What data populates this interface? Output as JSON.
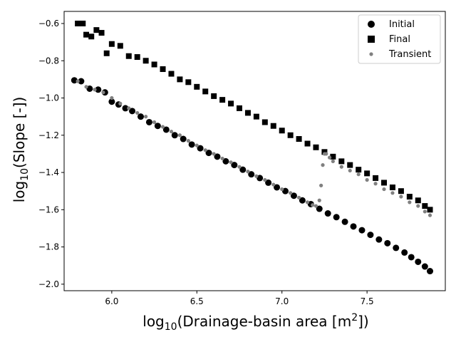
{
  "chart_data": {
    "type": "scatter",
    "xlabel_parts": [
      "log",
      "10",
      "(Drainage-basin area [m",
      "2",
      "])"
    ],
    "ylabel_parts": [
      "log",
      "10",
      "(Slope [-])"
    ],
    "xlim": [
      5.72,
      7.96
    ],
    "ylim": [
      -2.035,
      -0.535
    ],
    "x_ticks": [
      6.0,
      6.5,
      7.0,
      7.5
    ],
    "x_tick_labels": [
      "6.0",
      "6.5",
      "7.0",
      "7.5"
    ],
    "y_ticks": [
      -2.0,
      -1.8,
      -1.6,
      -1.4,
      -1.2,
      -1.0,
      -0.8,
      -0.6
    ],
    "y_tick_labels": [
      "−2.0",
      "−1.8",
      "−1.6",
      "−1.4",
      "−1.2",
      "−1.0",
      "−0.8",
      "−0.6"
    ],
    "legend_position": "top-right",
    "grid": false,
    "series": [
      {
        "name": "Initial",
        "marker": "circle",
        "color": "#000000",
        "x": [
          5.78,
          5.82,
          5.87,
          5.92,
          5.96,
          6.0,
          6.04,
          6.08,
          6.12,
          6.17,
          6.22,
          6.27,
          6.32,
          6.37,
          6.42,
          6.47,
          6.52,
          6.57,
          6.62,
          6.67,
          6.72,
          6.77,
          6.82,
          6.87,
          6.92,
          6.97,
          7.02,
          7.07,
          7.12,
          7.17,
          7.22,
          7.27,
          7.32,
          7.37,
          7.42,
          7.47,
          7.52,
          7.57,
          7.62,
          7.67,
          7.72,
          7.76,
          7.8,
          7.84,
          7.87
        ],
        "y": [
          -0.905,
          -0.91,
          -0.95,
          -0.955,
          -0.97,
          -1.02,
          -1.035,
          -1.055,
          -1.07,
          -1.1,
          -1.13,
          -1.15,
          -1.17,
          -1.2,
          -1.22,
          -1.25,
          -1.27,
          -1.295,
          -1.315,
          -1.34,
          -1.36,
          -1.385,
          -1.41,
          -1.43,
          -1.455,
          -1.48,
          -1.5,
          -1.525,
          -1.55,
          -1.57,
          -1.595,
          -1.62,
          -1.64,
          -1.665,
          -1.69,
          -1.71,
          -1.735,
          -1.76,
          -1.78,
          -1.805,
          -1.83,
          -1.855,
          -1.88,
          -1.905,
          -1.93
        ]
      },
      {
        "name": "Final",
        "marker": "square",
        "color": "#000000",
        "x": [
          5.8,
          5.83,
          5.85,
          5.88,
          5.91,
          5.94,
          5.97,
          6.0,
          6.05,
          6.1,
          6.15,
          6.2,
          6.25,
          6.3,
          6.35,
          6.4,
          6.45,
          6.5,
          6.55,
          6.6,
          6.65,
          6.7,
          6.75,
          6.8,
          6.85,
          6.9,
          6.95,
          7.0,
          7.05,
          7.1,
          7.15,
          7.2,
          7.25,
          7.3,
          7.35,
          7.4,
          7.45,
          7.5,
          7.55,
          7.6,
          7.65,
          7.7,
          7.75,
          7.8,
          7.84,
          7.87
        ],
        "y": [
          -0.6,
          -0.6,
          -0.66,
          -0.67,
          -0.635,
          -0.65,
          -0.76,
          -0.71,
          -0.72,
          -0.775,
          -0.78,
          -0.8,
          -0.82,
          -0.845,
          -0.87,
          -0.9,
          -0.915,
          -0.94,
          -0.965,
          -0.99,
          -1.01,
          -1.03,
          -1.055,
          -1.08,
          -1.1,
          -1.13,
          -1.15,
          -1.175,
          -1.2,
          -1.22,
          -1.245,
          -1.265,
          -1.29,
          -1.315,
          -1.34,
          -1.36,
          -1.385,
          -1.405,
          -1.43,
          -1.455,
          -1.48,
          -1.5,
          -1.53,
          -1.55,
          -1.58,
          -1.6
        ]
      },
      {
        "name": "Transient",
        "marker": "small-circle",
        "color": "#808080",
        "x": [
          5.8,
          5.85,
          5.9,
          5.95,
          6.0,
          6.05,
          6.1,
          6.15,
          6.2,
          6.25,
          6.3,
          6.35,
          6.4,
          6.45,
          6.5,
          6.55,
          6.6,
          6.65,
          6.7,
          6.75,
          6.8,
          6.85,
          6.9,
          6.95,
          7.0,
          7.05,
          7.1,
          7.15,
          7.18,
          7.2,
          7.22,
          7.23,
          7.24,
          7.25,
          7.26,
          7.28,
          7.3,
          7.35,
          7.4,
          7.45,
          7.5,
          7.55,
          7.6,
          7.65,
          7.7,
          7.75,
          7.8,
          7.84,
          7.87
        ],
        "y": [
          -0.91,
          -0.94,
          -0.955,
          -0.97,
          -1.0,
          -1.03,
          -1.055,
          -1.08,
          -1.1,
          -1.13,
          -1.155,
          -1.18,
          -1.2,
          -1.23,
          -1.255,
          -1.28,
          -1.3,
          -1.325,
          -1.345,
          -1.37,
          -1.395,
          -1.42,
          -1.44,
          -1.465,
          -1.49,
          -1.51,
          -1.535,
          -1.56,
          -1.575,
          -1.58,
          -1.55,
          -1.47,
          -1.36,
          -1.3,
          -1.3,
          -1.32,
          -1.34,
          -1.37,
          -1.39,
          -1.41,
          -1.44,
          -1.46,
          -1.49,
          -1.51,
          -1.53,
          -1.56,
          -1.58,
          -1.61,
          -1.63
        ]
      }
    ]
  }
}
